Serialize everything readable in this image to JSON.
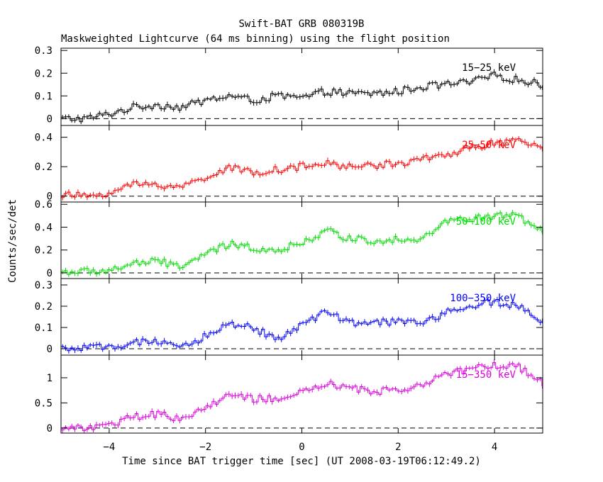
{
  "chart_data": {
    "type": "line",
    "title": "Swift-BAT GRB 080319B",
    "subtitle": "Maskweighted Lightcurve (64 ms binning) using the flight position",
    "xlabel": "Time since BAT trigger time [sec] (UT 2008-03-19T06:12:49.2)",
    "ylabel": "Counts/sec/det",
    "xlim": [
      -5,
      5
    ],
    "x_ticks": [
      -4,
      -2,
      0,
      2,
      4
    ],
    "x_tick_labels": [
      "−4",
      "−2",
      "0",
      "2",
      "4"
    ],
    "panels": [
      {
        "name": "15-25 keV",
        "label": "15−25 keV",
        "color": "#000000",
        "ylim": [
          -0.03,
          0.31
        ],
        "y_ticks": [
          0,
          0.1,
          0.2,
          0.3
        ],
        "y_tick_labels": [
          "0",
          "0.1",
          "0.2",
          "0.3"
        ],
        "t": [
          -5,
          -4.5,
          -4,
          -3.5,
          -3,
          -2.5,
          -2,
          -1.5,
          -1,
          -0.5,
          0,
          0.5,
          1,
          1.5,
          2,
          2.5,
          3,
          3.5,
          4,
          4.5,
          5
        ],
        "y": [
          0.0,
          0.0,
          0.02,
          0.05,
          0.06,
          0.05,
          0.08,
          0.1,
          0.08,
          0.1,
          0.09,
          0.12,
          0.11,
          0.11,
          0.12,
          0.14,
          0.15,
          0.16,
          0.19,
          0.17,
          0.15
        ]
      },
      {
        "name": "25-50 keV",
        "label": "25−50 keV",
        "color": "#ff0000",
        "ylim": [
          -0.04,
          0.48
        ],
        "y_ticks": [
          0,
          0.2,
          0.4
        ],
        "y_tick_labels": [
          "0",
          "0.2",
          "0.4"
        ],
        "t": [
          -5,
          -4.5,
          -4,
          -3.5,
          -3,
          -2.5,
          -2,
          -1.5,
          -1,
          -0.5,
          0,
          0.5,
          1,
          1.5,
          2,
          2.5,
          3,
          3.5,
          4,
          4.5,
          5
        ],
        "y": [
          0.01,
          0.0,
          0.02,
          0.08,
          0.08,
          0.06,
          0.13,
          0.19,
          0.16,
          0.18,
          0.2,
          0.22,
          0.2,
          0.21,
          0.22,
          0.25,
          0.28,
          0.33,
          0.36,
          0.37,
          0.33
        ]
      },
      {
        "name": "50-100 keV",
        "label": "50−100 keV",
        "color": "#00dd00",
        "ylim": [
          -0.05,
          0.62
        ],
        "y_ticks": [
          0,
          0.2,
          0.4,
          0.6
        ],
        "y_tick_labels": [
          "0",
          "0.2",
          "0.4",
          "0.6"
        ],
        "t": [
          -5,
          -4.5,
          -4,
          -3.5,
          -3,
          -2.5,
          -2,
          -1.5,
          -1,
          -0.5,
          0,
          0.5,
          1,
          1.5,
          2,
          2.5,
          3,
          3.5,
          4,
          4.5,
          5
        ],
        "y": [
          0.01,
          0.01,
          0.02,
          0.08,
          0.1,
          0.06,
          0.16,
          0.25,
          0.22,
          0.2,
          0.26,
          0.37,
          0.3,
          0.28,
          0.3,
          0.3,
          0.45,
          0.47,
          0.5,
          0.5,
          0.35
        ]
      },
      {
        "name": "100-350 keV",
        "label": "100−350 keV",
        "color": "#0000ff",
        "ylim": [
          -0.03,
          0.33
        ],
        "y_ticks": [
          0,
          0.1,
          0.2,
          0.3
        ],
        "y_tick_labels": [
          "0",
          "0.1",
          "0.2",
          "0.3"
        ],
        "t": [
          -5,
          -4.5,
          -4,
          -3.5,
          -3,
          -2.5,
          -2,
          -1.5,
          -1,
          -0.5,
          0,
          0.5,
          1,
          1.5,
          2,
          2.5,
          3,
          3.5,
          4,
          4.5,
          5
        ],
        "y": [
          0.0,
          0.0,
          0.01,
          0.03,
          0.03,
          0.0,
          0.06,
          0.12,
          0.1,
          0.04,
          0.12,
          0.17,
          0.12,
          0.12,
          0.13,
          0.12,
          0.17,
          0.2,
          0.22,
          0.2,
          0.12
        ]
      },
      {
        "name": "15-350 keV",
        "label": "15−350 keV",
        "color": "#dd00dd",
        "ylim": [
          -0.1,
          1.45
        ],
        "y_ticks": [
          0,
          0.5,
          1
        ],
        "y_tick_labels": [
          "0",
          "0.5",
          "1"
        ],
        "t": [
          -5,
          -4.5,
          -4,
          -3.5,
          -3,
          -2.5,
          -2,
          -1.5,
          -1,
          -0.5,
          0,
          0.5,
          1,
          1.5,
          2,
          2.5,
          3,
          3.5,
          4,
          4.5,
          5
        ],
        "y": [
          0.0,
          0.01,
          0.05,
          0.22,
          0.28,
          0.18,
          0.4,
          0.65,
          0.58,
          0.58,
          0.7,
          0.88,
          0.78,
          0.73,
          0.75,
          0.88,
          1.05,
          1.18,
          1.25,
          1.22,
          0.9
        ]
      }
    ]
  }
}
